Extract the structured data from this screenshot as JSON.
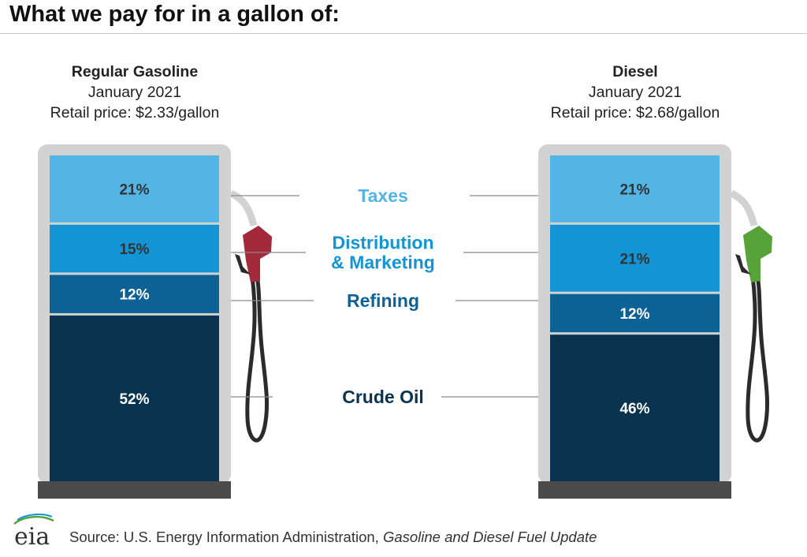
{
  "title": "What we pay for in a gallon of:",
  "chart_data": {
    "type": "bar",
    "stacked": true,
    "categories": [
      "Regular Gasoline",
      "Diesel"
    ],
    "headers": [
      {
        "name": "Regular Gasoline",
        "date": "January 2021",
        "price": "Retail price: $2.33/gallon"
      },
      {
        "name": "Diesel",
        "date": "January 2021",
        "price": "Retail price: $2.68/gallon"
      }
    ],
    "series": [
      {
        "name": "Taxes",
        "values": [
          21,
          21
        ],
        "labels": [
          "21%",
          "21%"
        ],
        "color": "#52b5e5",
        "label_color": "#333333",
        "legend_color": "#52b5e5"
      },
      {
        "name": "Distribution & Marketing",
        "name_lines": [
          "Distribution",
          "& Marketing"
        ],
        "values": [
          15,
          21
        ],
        "labels": [
          "15%",
          "21%"
        ],
        "color": "#1395d5",
        "label_color": "#333333",
        "legend_color": "#1395d5"
      },
      {
        "name": "Refining",
        "values": [
          12,
          12
        ],
        "labels": [
          "12%",
          "12%"
        ],
        "color": "#0c6294",
        "label_color": "#ffffff",
        "legend_color": "#0c6294"
      },
      {
        "name": "Crude Oil",
        "values": [
          52,
          46
        ],
        "labels": [
          "52%",
          "46%"
        ],
        "color": "#0a3350",
        "label_color": "#ffffff",
        "legend_color": "#0a3350"
      }
    ],
    "nozzle_colors": [
      "#a32a3a",
      "#58a23a"
    ],
    "legend_placement": "center-between-bars"
  },
  "footer": {
    "logo_text": "eia",
    "source_prefix": "Source: U.S. Energy Information Administration, ",
    "source_title": "Gasoline and Diesel Fuel Update"
  },
  "colors": {
    "pump_frame": "#d2d2d2",
    "pump_base": "#4b4b4b",
    "hose": "#2b2b2b",
    "guide_line": "#8a8a8a"
  }
}
